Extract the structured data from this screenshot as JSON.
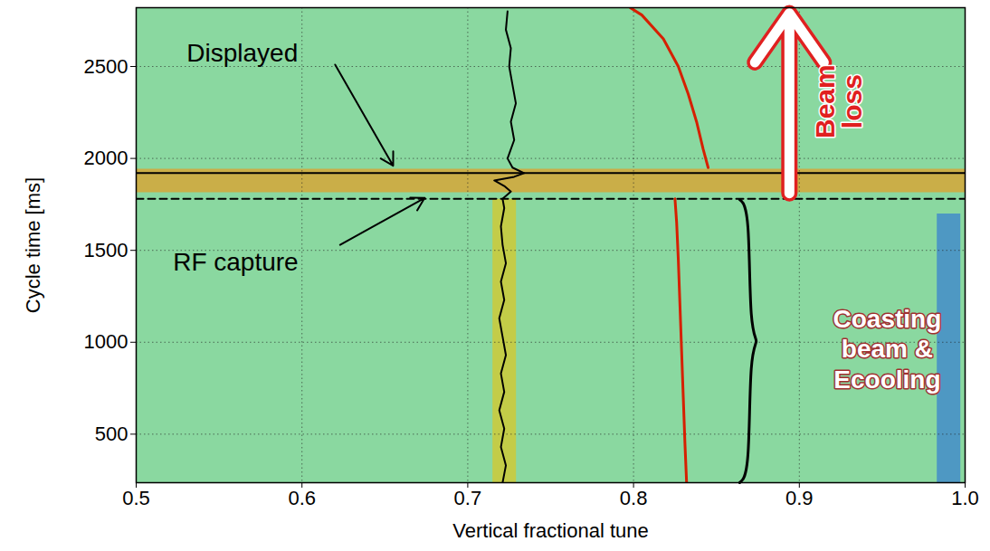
{
  "chart_data": {
    "type": "line",
    "x_label": "Vertical fractional tune",
    "y_label": "Cycle time [ms]",
    "xlim": [
      0.5,
      1.0
    ],
    "ylim": [
      236,
      2820
    ],
    "xticks": [
      0.5,
      0.6,
      0.7,
      0.8,
      0.9,
      {
        "value": 1.0,
        "label": "1.0"
      }
    ],
    "yticks": [
      500,
      1000,
      1500,
      2000,
      2500
    ],
    "grid": true,
    "series": [
      {
        "color": "#f2c200",
        "line_style": "band",
        "x": [
          0.722,
          0.722,
          0.722
        ],
        "y": [
          236,
          1000,
          1780
        ]
      },
      {
        "color": "#ff8c00",
        "line_style": "band",
        "x": [
          0.5,
          1.0
        ],
        "y": [
          1880,
          1880
        ]
      },
      {
        "color": "#1e64e0",
        "line_style": "band",
        "x": [
          0.99,
          0.99
        ],
        "y": [
          236,
          1700
        ]
      },
      {
        "color": "#d62000",
        "line_style": "solid",
        "x": [
          0.832,
          0.831,
          0.83,
          0.829,
          0.828,
          0.827,
          0.826,
          0.825
        ],
        "y": [
          236,
          450,
          700,
          950,
          1200,
          1450,
          1650,
          1780
        ]
      },
      {
        "color": "#d62000",
        "line_style": "solid",
        "x": [
          0.845,
          0.842,
          0.838,
          0.833,
          0.827,
          0.818,
          0.805,
          0.798
        ],
        "y": [
          1950,
          2050,
          2200,
          2350,
          2500,
          2650,
          2780,
          2820
        ]
      },
      {
        "color": "#000000",
        "line_style": "dashed",
        "x": [
          0.5,
          1.0
        ],
        "y": [
          1780,
          1780
        ]
      },
      {
        "color": "#000000",
        "line_style": "solid",
        "x": [
          0.5,
          1.0
        ],
        "y": [
          1920,
          1920
        ]
      },
      {
        "color": "#000000",
        "line_style": "solid",
        "x": [
          0.721,
          0.723,
          0.72,
          0.722,
          0.719,
          0.722,
          0.72,
          0.723,
          0.721,
          0.719,
          0.722,
          0.72,
          0.723,
          0.721,
          0.72,
          0.722,
          0.721,
          0.726,
          0.722,
          0.716,
          0.728,
          0.734,
          0.727,
          0.724,
          0.728,
          0.726,
          0.729,
          0.727,
          0.725,
          0.726,
          0.723,
          0.724
        ],
        "y": [
          236,
          330,
          430,
          530,
          630,
          730,
          830,
          930,
          1030,
          1130,
          1230,
          1330,
          1430,
          1530,
          1630,
          1730,
          1780,
          1820,
          1850,
          1880,
          1900,
          1920,
          1950,
          2000,
          2100,
          2200,
          2300,
          2400,
          2500,
          2600,
          2700,
          2800
        ]
      }
    ],
    "annotations": [
      {
        "type": "pointer",
        "text": "Displayed",
        "color": "#000000",
        "x": 0.564,
        "y": 2570,
        "arrow_x1": 0.62,
        "arrow_y1": 2510,
        "arrow_x2": 0.655,
        "arrow_y2": 1960
      },
      {
        "type": "pointer",
        "text": "RF capture",
        "color": "#000000",
        "x": 0.56,
        "y": 1434,
        "arrow_x1": 0.623,
        "arrow_y1": 1530,
        "arrow_x2": 0.674,
        "arrow_y2": 1785
      },
      {
        "type": "block_arrow",
        "text": "Beam\nloss",
        "color": "#e02020",
        "x": 0.924,
        "y": 2310,
        "arrow_x1": 0.894,
        "arrow_y1": 1810,
        "arrow_x2": 0.894,
        "arrow_y2": 2790
      },
      {
        "type": "brace",
        "text": "Coasting\nbeam &\nEcooling",
        "color": "#ffffff",
        "x": 0.953,
        "y": 970,
        "brace_x": 0.87,
        "brace_y1": 236,
        "brace_y2": 1776
      }
    ]
  }
}
